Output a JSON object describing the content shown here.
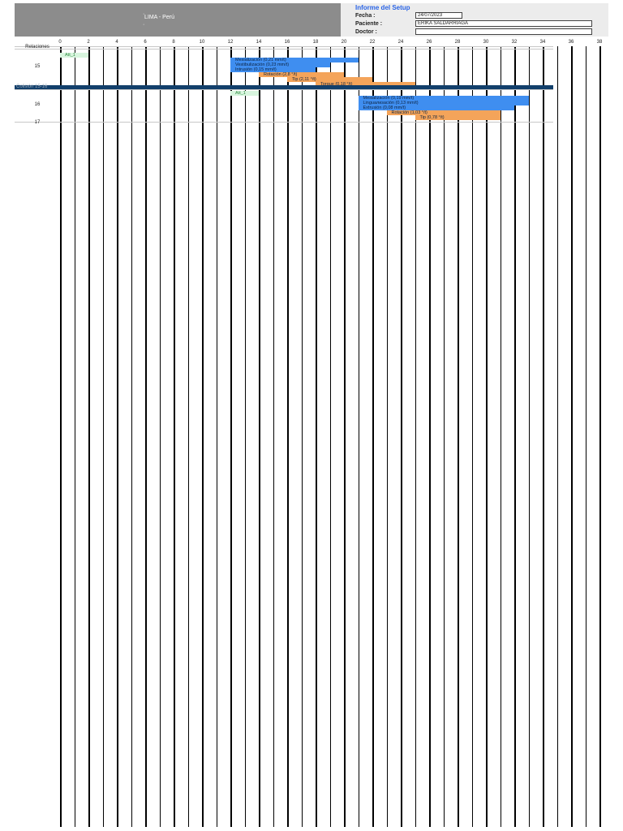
{
  "header": {
    "location": "LIMA - Perú",
    "title": "Informe del Setup",
    "fecha_label": "Fecha :",
    "fecha_value": "24/07/2023",
    "paciente_label": "Paciente :",
    "paciente_value": "ERIKA SALDARRIAGA",
    "doctor_label": "Doctor :",
    "doctor_value": ""
  },
  "axis_ticks": [
    "0",
    "2",
    "4",
    "6",
    "8",
    "10",
    "12",
    "14",
    "16",
    "18",
    "20",
    "22",
    "24",
    "26",
    "28",
    "30",
    "32",
    "34",
    "36",
    "38"
  ],
  "colors": {
    "movement": "#3f8ef0",
    "rotation": "#f4a45a",
    "attachment": "#d8f5de",
    "separator": "#123f6b"
  },
  "rows": [
    {
      "label": "Relaciones",
      "top": 0,
      "height": 3
    },
    {
      "label": "15",
      "top": 3,
      "height": 45,
      "bars": [
        {
          "t": "Att_1",
          "c": "green",
          "s": 0,
          "e": 2,
          "y": 5
        },
        {
          "t": "Mesialización (0,21 mm/t)",
          "c": "blue",
          "s": 12,
          "e": 21,
          "y": 11
        },
        {
          "t": "Vestibulización (0,23 mm/t)",
          "c": "blue",
          "s": 12,
          "e": 19,
          "y": 17
        },
        {
          "t": "Intrusión (0,15 mm/t)",
          "c": "blue",
          "s": 12,
          "e": 18,
          "y": 23
        },
        {
          "t": "Rotación (2,8 °/t)",
          "c": "orange",
          "s": 14,
          "e": 20,
          "y": 29
        },
        {
          "t": "Tip (2,11 °/t)",
          "c": "orange",
          "s": 16,
          "e": 22,
          "y": 35
        },
        {
          "t": "Torque (0,18 °/t)",
          "c": "orange",
          "s": 18,
          "e": 25,
          "y": 41
        }
      ]
    },
    {
      "sep": "Colisión 15-16",
      "top": 48
    },
    {
      "label": "16",
      "top": 53,
      "height": 40,
      "bars": [
        {
          "t": "Att_1",
          "c": "green",
          "s": 12,
          "e": 14,
          "y": 2
        },
        {
          "t": "Mesialización (0,19 mm/t)",
          "c": "blue",
          "s": 21,
          "e": 33,
          "y": 8
        },
        {
          "t": "Linguализación (0,13 mm/t)",
          "c": "blue",
          "s": 21,
          "e": 33,
          "y": 14
        },
        {
          "t": "Extrusión (0,08 mm/t)",
          "c": "blue",
          "s": 21,
          "e": 32,
          "y": 20
        },
        {
          "t": "Rotación (1,03 °/t)",
          "c": "orange",
          "s": 23,
          "e": 31,
          "y": 26
        },
        {
          "t": "Tip (0,78 °/t)",
          "c": "orange",
          "s": 25,
          "e": 31,
          "y": 32
        }
      ]
    },
    {
      "label": "17",
      "top": 93,
      "height": 3
    }
  ]
}
